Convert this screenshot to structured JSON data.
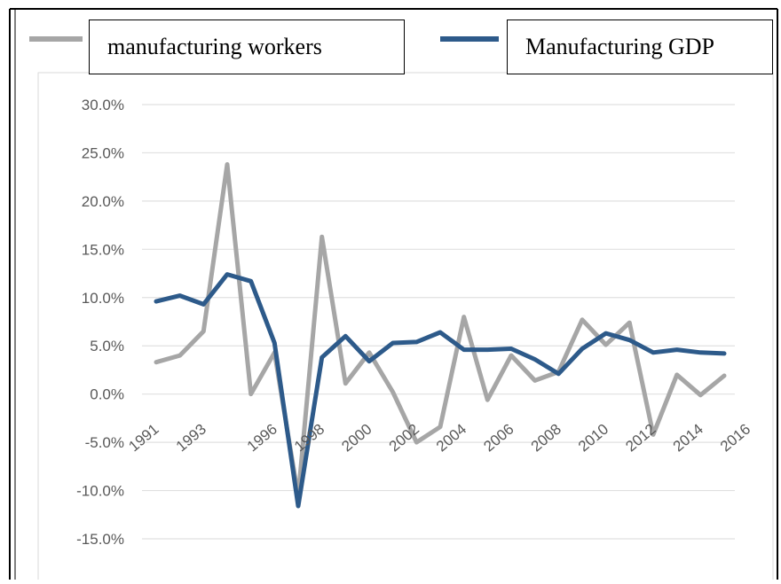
{
  "chart_data": {
    "type": "line",
    "x": [
      "1991",
      "1992",
      "1993",
      "1994",
      "1995",
      "1996",
      "1997",
      "1998",
      "1999",
      "2000",
      "2001",
      "2002",
      "2003",
      "2004",
      "2005",
      "2006",
      "2007",
      "2008",
      "2009",
      "2010",
      "2011",
      "2012",
      "2013",
      "2014",
      "2015",
      "2016"
    ],
    "x_tick_labels": [
      "1991",
      "1993",
      "1996",
      "1998",
      "2000",
      "2002",
      "2004",
      "2006",
      "2008",
      "2010",
      "2012",
      "2014",
      "2016"
    ],
    "series": [
      {
        "name": "manufacturing workers",
        "color": "#a6a6a6",
        "values": [
          3.3,
          4.0,
          6.5,
          23.8,
          0.0,
          4.3,
          -10.6,
          16.3,
          1.1,
          4.3,
          0.2,
          -5.0,
          -3.4,
          8.0,
          -0.6,
          4.0,
          1.4,
          2.3,
          7.7,
          5.1,
          7.4,
          -4.2,
          2.0,
          -0.1,
          1.9,
          null
        ]
      },
      {
        "name": "Manufacturing GDP",
        "color": "#2d5a8a",
        "values": [
          9.6,
          10.2,
          9.3,
          12.4,
          11.7,
          5.3,
          -11.6,
          3.8,
          6.0,
          3.4,
          5.3,
          5.4,
          6.4,
          4.6,
          4.6,
          4.7,
          3.6,
          2.1,
          4.7,
          6.3,
          5.6,
          4.3,
          4.6,
          4.3,
          4.2,
          null
        ]
      }
    ],
    "y_tick_labels": [
      "30.0%",
      "25.0%",
      "20.0%",
      "15.0%",
      "10.0%",
      "5.0%",
      "0.0%",
      "-5.0%",
      "-10.0%",
      "-15.0%"
    ],
    "ylim": [
      -15,
      30
    ],
    "y_unit": "%",
    "grid": true,
    "legend_position": "top"
  }
}
